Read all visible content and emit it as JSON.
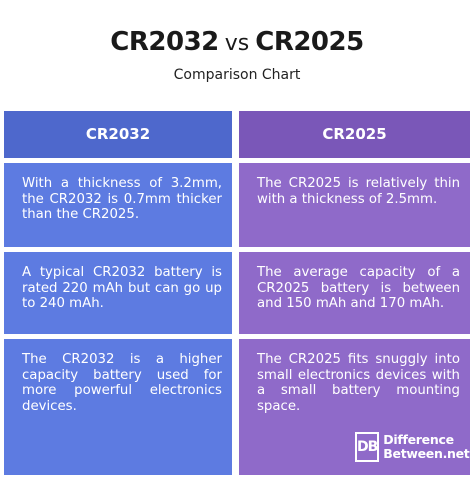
{
  "header": {
    "title_left": "CR2032",
    "title_vs": "vs",
    "title_right": "CR2025",
    "subtitle": "Comparison Chart"
  },
  "colors": {
    "col_a_header": "#4e68cc",
    "col_a_cell": "#5d7be1",
    "col_b_header": "#7a57b8",
    "col_b_cell": "#8f6ac9"
  },
  "table": {
    "columns": [
      "CR2032",
      "CR2025"
    ],
    "rows": [
      [
        "With a thickness of 3.2mm, the CR2032 is 0.7mm thicker than the CR2025.",
        "The CR2025 is relatively thin with a thickness of 2.5mm."
      ],
      [
        "A typical CR2032 battery is rated 220 mAh but can go up to 240 mAh.",
        "The average capacity of a CR2025 battery is between and 150 mAh and 170 mAh."
      ],
      [
        "The CR2032 is a higher capacity battery used for more powerful electronics devices.",
        "The CR2025 fits snuggly into small electronics devices with a small battery mounting space."
      ]
    ]
  },
  "logo": {
    "mark": "DB",
    "line1": "Difference",
    "line2": "Between.net"
  }
}
